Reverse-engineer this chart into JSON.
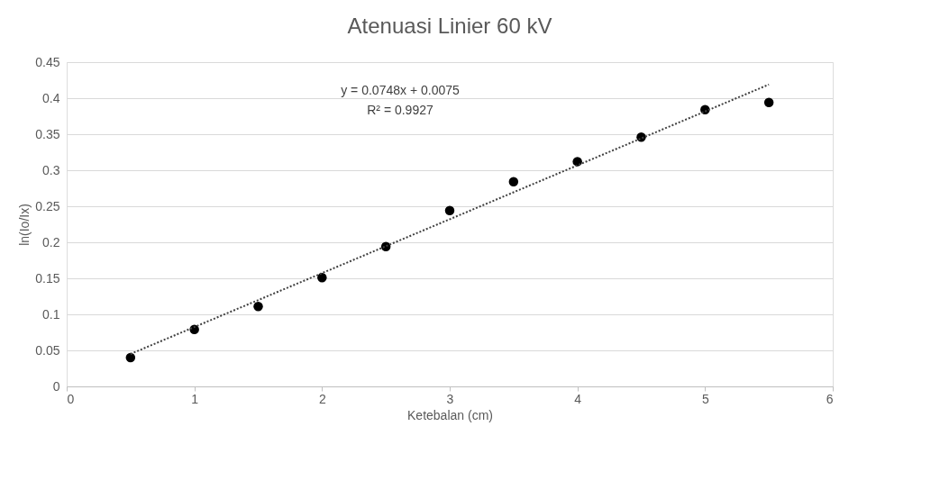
{
  "chart_data": {
    "type": "scatter",
    "title": "Atenuasi Linier 60 kV",
    "xlabel": "Ketebalan (cm)",
    "ylabel": "ln(Io/Ix)",
    "xlim": [
      0,
      6
    ],
    "xticks": [
      0,
      1,
      2,
      3,
      4,
      5,
      6
    ],
    "ylim": [
      0,
      0.45
    ],
    "yticks": [
      0,
      0.05,
      0.1,
      0.15,
      0.2,
      0.25,
      0.3,
      0.35,
      0.4,
      0.45
    ],
    "grid": "y",
    "legend": false,
    "series": [
      {
        "color": "#000000",
        "marker": "circle",
        "x": [
          0.5,
          1,
          1.5,
          2,
          2.5,
          3,
          3.5,
          4,
          4.5,
          5,
          5.5
        ],
        "values": [
          0.04,
          0.079,
          0.111,
          0.151,
          0.194,
          0.244,
          0.284,
          0.312,
          0.346,
          0.384,
          0.394
        ]
      },
      {
        "type": "line",
        "color": "#404040",
        "line_style": "dotted",
        "marker": "none",
        "x": [
          0.5,
          5.5
        ],
        "values": [
          0.045,
          0.419
        ]
      }
    ],
    "annotations": [
      "y = 0.0748x + 0.0075",
      "R² = 0.9927"
    ]
  }
}
